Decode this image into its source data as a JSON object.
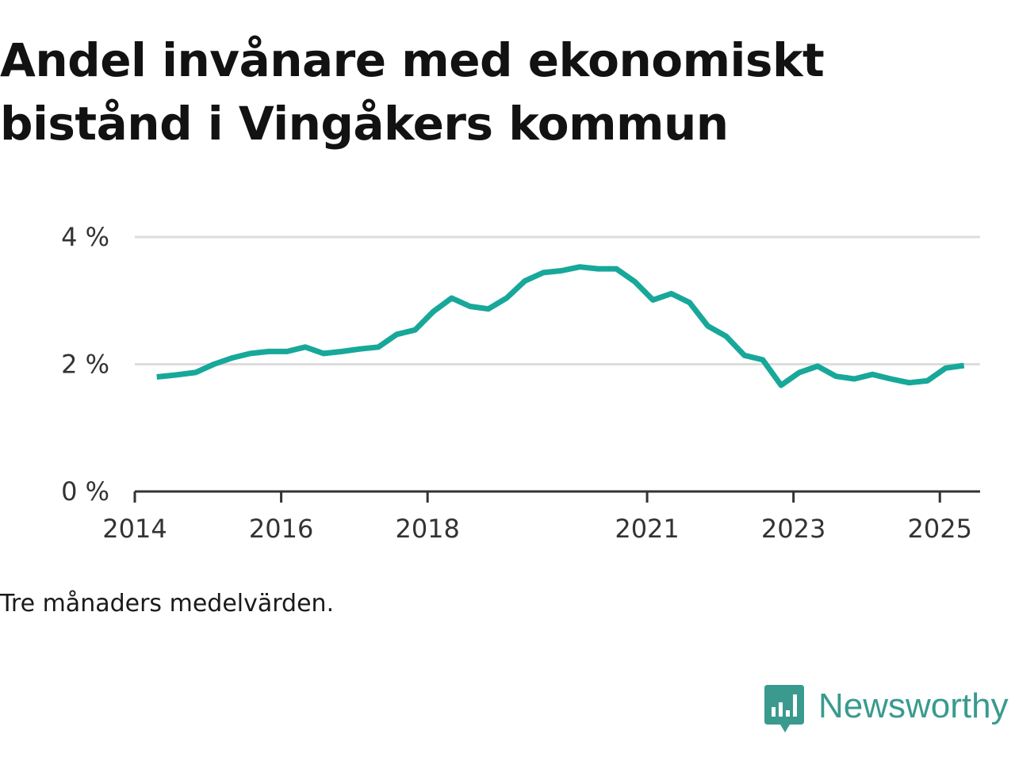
{
  "title_lines": [
    "Andel invånare med ekonomiskt",
    "bistånd i Vingåkers kommun"
  ],
  "note": "Tre månaders medelvärden.",
  "brand": {
    "name": "Newsworthy",
    "icon": "bar-chart-speech-bubble-icon",
    "color": "#3a9a8e"
  },
  "colors": {
    "line": "#17a89a",
    "grid": "#dddddd",
    "axis": "#333333"
  },
  "chart_data": {
    "type": "line",
    "title": "Andel invånare med ekonomiskt bistånd i Vingåkers kommun",
    "xlabel": "",
    "ylabel": "",
    "xlim": [
      2014.0,
      2025.55
    ],
    "ylim": [
      0,
      4
    ],
    "x_ticks": [
      2014,
      2016,
      2018,
      2021,
      2023,
      2025
    ],
    "x_tick_labels": [
      "2014",
      "2016",
      "2018",
      "2021",
      "2023",
      "2025"
    ],
    "y_ticks": [
      0,
      2,
      4
    ],
    "y_tick_labels": [
      "0 %",
      "2 %",
      "4 %"
    ],
    "grid": "horizontal",
    "legend": "none",
    "series": [
      {
        "x": [
          2014.3,
          2014.55,
          2014.83,
          2015.08,
          2015.33,
          2015.58,
          2015.83,
          2016.08,
          2016.33,
          2016.58,
          2016.83,
          2017.08,
          2017.33,
          2017.58,
          2017.83,
          2018.08,
          2018.33,
          2018.58,
          2018.83,
          2019.08,
          2019.33,
          2019.58,
          2019.83,
          2020.08,
          2020.33,
          2020.58,
          2020.83,
          2021.08,
          2021.33,
          2021.58,
          2021.83,
          2022.08,
          2022.33,
          2022.58,
          2022.83,
          2023.08,
          2023.33,
          2023.58,
          2023.83,
          2024.08,
          2024.33,
          2024.58,
          2024.83,
          2025.08,
          2025.33
        ],
        "values": [
          1.8,
          1.83,
          1.87,
          2.0,
          2.1,
          2.17,
          2.2,
          2.2,
          2.27,
          2.17,
          2.2,
          2.24,
          2.27,
          2.47,
          2.54,
          2.83,
          3.04,
          2.91,
          2.87,
          3.04,
          3.31,
          3.44,
          3.47,
          3.53,
          3.5,
          3.5,
          3.3,
          3.01,
          3.11,
          2.97,
          2.6,
          2.44,
          2.14,
          2.07,
          1.67,
          1.87,
          1.97,
          1.81,
          1.77,
          1.84,
          1.77,
          1.71,
          1.74,
          1.94,
          1.98
        ]
      }
    ]
  }
}
